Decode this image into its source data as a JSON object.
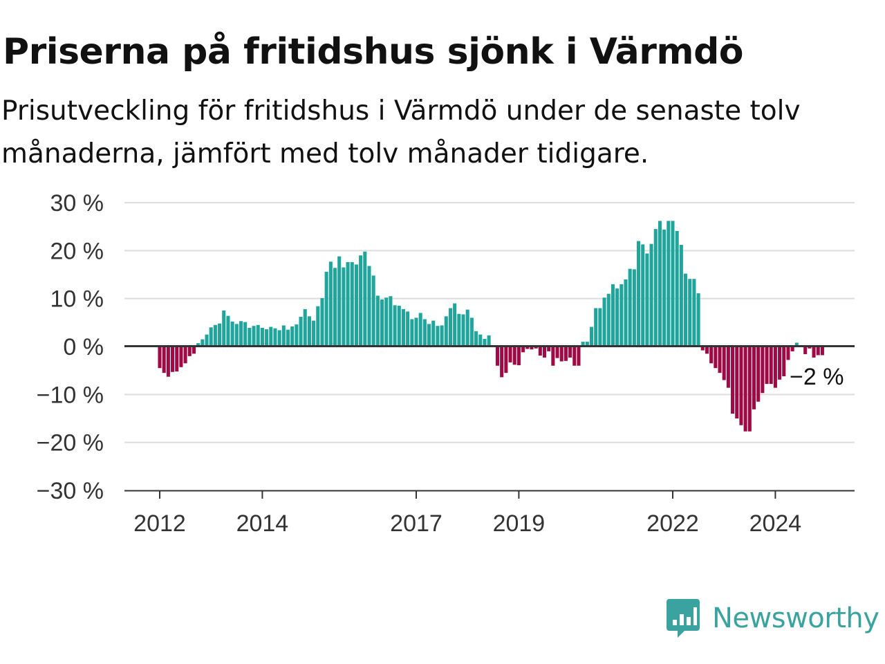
{
  "title": "Priserna på fritidshus sjönk i Värmdö",
  "subtitle": "Prisutveckling för fritidshus i Värmdö under de senaste tolv månaderna, jämfört med tolv månader tidigare.",
  "brand": {
    "name": "Newsworthy",
    "icon": "newsworthy-logo-icon",
    "color": "#3aa3a0"
  },
  "chart_data": {
    "type": "bar",
    "title": "Priserna på fritidshus sjönk i Värmdö",
    "subtitle": "Prisutveckling för fritidshus i Värmdö under de senaste tolv månaderna, jämfört med tolv månader tidigare.",
    "xlabel": "",
    "ylabel": "",
    "ylim": [
      -30,
      30
    ],
    "ytick_values": [
      30,
      20,
      10,
      0,
      -10,
      -20,
      -30
    ],
    "ytick_labels": [
      "30 %",
      "20 %",
      "10 %",
      "0 %",
      "−10 %",
      "−20 %",
      "−30 %"
    ],
    "xtick_labels": [
      "2012",
      "2014",
      "2017",
      "2019",
      "2022",
      "2024"
    ],
    "start": "2012-01",
    "grid": true,
    "colors": {
      "positive": "#1fa59c",
      "negative": "#9e0a45",
      "grid": "#dddddd",
      "zero": "#333333"
    },
    "last_value_label": "−2 %",
    "values": [
      -4.5,
      -5.5,
      -6.3,
      -5.3,
      -5.2,
      -4.3,
      -3.5,
      -2,
      -1.5,
      0.7,
      1.5,
      2.5,
      4,
      4.5,
      4.8,
      7.5,
      6.4,
      5.2,
      4.7,
      5.3,
      5.1,
      3.9,
      4.3,
      4.5,
      3.9,
      3.6,
      4.1,
      3.8,
      3.4,
      4.4,
      3.5,
      4.2,
      4.6,
      6.2,
      7.8,
      6.3,
      5.4,
      8.4,
      10.1,
      15.6,
      17.7,
      16.4,
      18.8,
      16.5,
      17.6,
      17.6,
      17.1,
      19,
      19.8,
      16.8,
      14.8,
      10.6,
      9.8,
      10.2,
      10.5,
      8.6,
      8.5,
      7.8,
      7.3,
      5.7,
      6,
      7,
      5.7,
      4.7,
      5.4,
      4.3,
      4.4,
      6.3,
      8,
      9,
      6.8,
      6.7,
      7.7,
      6,
      3.2,
      2.5,
      1.6,
      2.3,
      0,
      -4,
      -6.4,
      -5.5,
      -3.3,
      -3.8,
      -3.9,
      -1.2,
      -0.5,
      -0.6,
      -0.4,
      -1.9,
      -2.3,
      -1,
      -4,
      -2.4,
      -3.1,
      -3,
      -2.3,
      -4,
      -4,
      1,
      1,
      4.1,
      8,
      8,
      10.2,
      11,
      13,
      12.1,
      13,
      14,
      16.2,
      16.1,
      22,
      21.3,
      19.4,
      21.4,
      24.5,
      26.2,
      24.4,
      26.2,
      26.2,
      24.1,
      21.2,
      15.2,
      14.1,
      14.1,
      11.1,
      -0.8,
      -1.5,
      -3.5,
      -4.5,
      -5.5,
      -7,
      -8.6,
      -14,
      -15,
      -16.4,
      -17.7,
      -17.7,
      -13.1,
      -11.5,
      -9.7,
      -7.8,
      -7.8,
      -8.6,
      -6.9,
      -6.2,
      -2.8,
      -1,
      0.8,
      0,
      -1.6,
      -0.4,
      -2.3,
      -1.8,
      -1.8
    ]
  }
}
